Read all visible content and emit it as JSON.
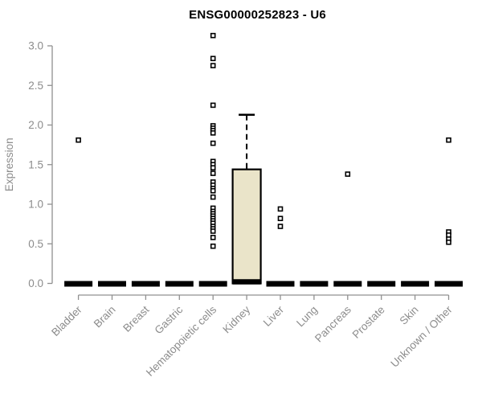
{
  "chart_data": {
    "type": "boxplot",
    "title": "ENSG00000252823 - U6",
    "xlabel": "",
    "ylabel": "Expression",
    "ylim": [
      0,
      3.15
    ],
    "yticks": [
      0.0,
      0.5,
      1.0,
      1.5,
      2.0,
      2.5,
      3.0
    ],
    "grid": false,
    "legend": "none",
    "categories": [
      "Bladder",
      "Brain",
      "Breast",
      "Gastric",
      "Hematopoietic cells",
      "Kidney",
      "Liver",
      "Lung",
      "Pancreas",
      "Prostate",
      "Skin",
      "Unknown / Other"
    ],
    "boxes": [
      {
        "category": "Bladder",
        "q1": 0,
        "median": 0,
        "q3": 0,
        "whisker_low": 0,
        "whisker_high": 0,
        "outliers": [
          1.81
        ]
      },
      {
        "category": "Brain",
        "q1": 0,
        "median": 0,
        "q3": 0,
        "whisker_low": 0,
        "whisker_high": 0,
        "outliers": []
      },
      {
        "category": "Breast",
        "q1": 0,
        "median": 0,
        "q3": 0,
        "whisker_low": 0,
        "whisker_high": 0,
        "outliers": []
      },
      {
        "category": "Gastric",
        "q1": 0,
        "median": 0,
        "q3": 0,
        "whisker_low": 0,
        "whisker_high": 0,
        "outliers": []
      },
      {
        "category": "Hematopoietic cells",
        "q1": 0,
        "median": 0,
        "q3": 0,
        "whisker_low": 0,
        "whisker_high": 0,
        "outliers": [
          3.13,
          2.84,
          2.75,
          2.25,
          1.99,
          1.96,
          1.93,
          1.9,
          1.77,
          1.54,
          1.5,
          1.46,
          1.39,
          1.28,
          1.24,
          1.2,
          1.17,
          1.09,
          0.95,
          0.91,
          0.88,
          0.85,
          0.82,
          0.79,
          0.76,
          0.72,
          0.69,
          0.66,
          0.58,
          0.47
        ]
      },
      {
        "category": "Kidney",
        "q1": 0,
        "median": 0.02,
        "q3": 1.44,
        "whisker_low": 0,
        "whisker_high": 2.13,
        "outliers": []
      },
      {
        "category": "Liver",
        "q1": 0,
        "median": 0,
        "q3": 0,
        "whisker_low": 0,
        "whisker_high": 0,
        "outliers": [
          0.94,
          0.82,
          0.72
        ]
      },
      {
        "category": "Lung",
        "q1": 0,
        "median": 0,
        "q3": 0,
        "whisker_low": 0,
        "whisker_high": 0,
        "outliers": []
      },
      {
        "category": "Pancreas",
        "q1": 0,
        "median": 0,
        "q3": 0,
        "whisker_low": 0,
        "whisker_high": 0,
        "outliers": [
          1.38
        ]
      },
      {
        "category": "Prostate",
        "q1": 0,
        "median": 0,
        "q3": 0,
        "whisker_low": 0,
        "whisker_high": 0,
        "outliers": []
      },
      {
        "category": "Skin",
        "q1": 0,
        "median": 0,
        "q3": 0,
        "whisker_low": 0,
        "whisker_high": 0,
        "outliers": []
      },
      {
        "category": "Unknown / Other",
        "q1": 0,
        "median": 0,
        "q3": 0,
        "whisker_low": 0,
        "whisker_high": 0,
        "outliers": [
          1.81,
          0.65,
          0.61,
          0.56,
          0.52
        ]
      }
    ],
    "colors": {
      "box_fill": "#EAE4C9",
      "box_stroke": "#000000",
      "median": "#000000",
      "whisker": "#000000",
      "outlier_stroke": "#000000",
      "outlier_fill": "#ffffff",
      "axis": "#909090",
      "tick_label": "#8C8C8C",
      "axis_label": "#8C8C8C",
      "title": "#000000",
      "background": "#ffffff"
    }
  }
}
